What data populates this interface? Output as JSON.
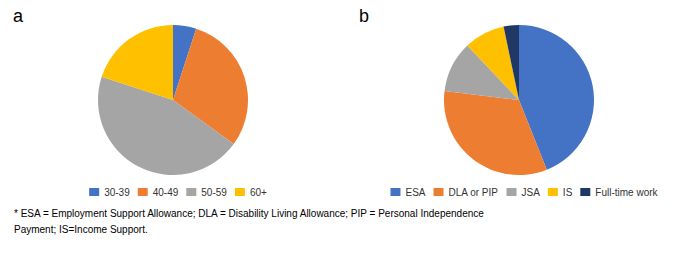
{
  "chart_data": [
    {
      "type": "pie",
      "title": "a",
      "categories": [
        "30-39",
        "40-49",
        "50-59",
        "60+"
      ],
      "values": [
        5,
        30,
        45,
        20
      ],
      "colors": [
        "#4472C4",
        "#ED7D31",
        "#A5A5A5",
        "#FFC000"
      ],
      "legend": "bottom"
    },
    {
      "type": "pie",
      "title": "b",
      "categories": [
        "ESA",
        "DLA or PIP",
        "JSA",
        "IS",
        "Full-time work"
      ],
      "values": [
        40,
        30,
        10,
        8,
        3
      ],
      "colors": [
        "#4472C4",
        "#ED7D31",
        "#A5A5A5",
        "#FFC000",
        "#203864"
      ],
      "legend": "bottom"
    }
  ],
  "annotations": [
    "* ESA = Employment Support Allowance; DLA = Disability Living Allowance; PIP = Personal Independence",
    "Payment; IS=Income Support."
  ]
}
